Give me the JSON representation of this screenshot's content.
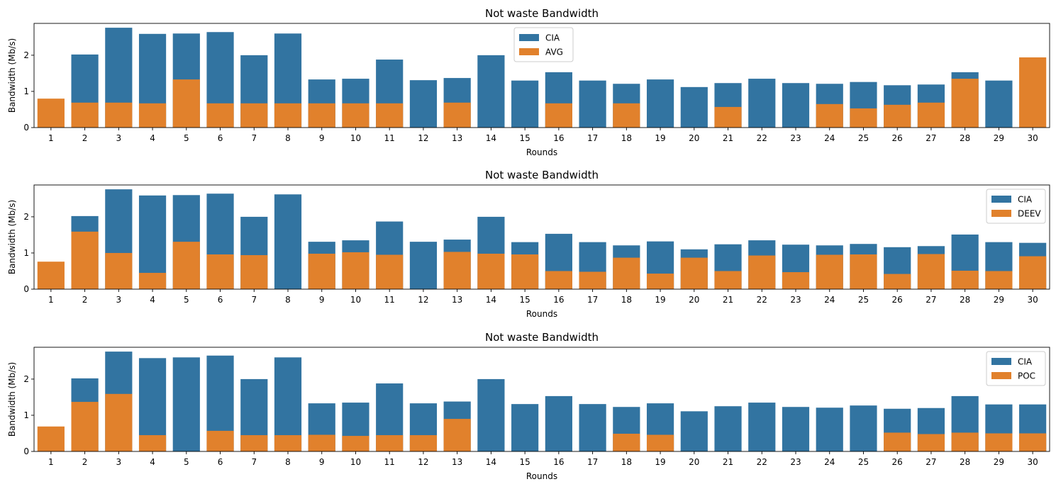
{
  "colors": {
    "cia": "#3274a1",
    "other": "#e1812c"
  },
  "chart_data": [
    {
      "type": "bar",
      "title": "Not waste Bandwidth",
      "xlabel": "Rounds",
      "ylabel": "Bandwidth (Mb/s)",
      "ylim": [
        0,
        2.88
      ],
      "yticks": [
        0,
        1,
        2
      ],
      "legend_position": "top-center",
      "categories": [
        "1",
        "2",
        "3",
        "4",
        "5",
        "6",
        "7",
        "8",
        "9",
        "10",
        "11",
        "12",
        "13",
        "14",
        "15",
        "16",
        "17",
        "18",
        "19",
        "20",
        "21",
        "22",
        "23",
        "24",
        "25",
        "26",
        "27",
        "28",
        "29",
        "30"
      ],
      "series": [
        {
          "name": "CIA",
          "values": [
            0,
            2.02,
            2.76,
            2.59,
            2.6,
            2.64,
            2.0,
            2.6,
            1.33,
            1.35,
            1.88,
            1.31,
            1.37,
            2.0,
            1.3,
            1.53,
            1.3,
            1.21,
            1.33,
            1.12,
            1.23,
            1.35,
            1.23,
            1.21,
            1.26,
            1.17,
            1.19,
            1.53,
            1.3,
            0
          ]
        },
        {
          "name": "AVG",
          "values": [
            0.8,
            0.69,
            0.69,
            0.67,
            1.33,
            0.67,
            0.67,
            0.67,
            0.67,
            0.67,
            0.67,
            0,
            0.69,
            0,
            0,
            0.67,
            0,
            0.67,
            0,
            0,
            0.57,
            0,
            0,
            0.65,
            0.53,
            0.63,
            0.69,
            1.35,
            0,
            1.94
          ]
        }
      ]
    },
    {
      "type": "bar",
      "title": "Not waste Bandwidth",
      "xlabel": "Rounds",
      "ylabel": "Bandwidth (Mb/s)",
      "ylim": [
        0,
        2.88
      ],
      "yticks": [
        0,
        1,
        2
      ],
      "legend_position": "top-right",
      "categories": [
        "1",
        "2",
        "3",
        "4",
        "5",
        "6",
        "7",
        "8",
        "9",
        "10",
        "11",
        "12",
        "13",
        "14",
        "15",
        "16",
        "17",
        "18",
        "19",
        "20",
        "21",
        "22",
        "23",
        "24",
        "25",
        "26",
        "27",
        "28",
        "29",
        "30"
      ],
      "series": [
        {
          "name": "CIA",
          "values": [
            0,
            2.02,
            2.76,
            2.59,
            2.6,
            2.64,
            2.0,
            2.62,
            1.31,
            1.35,
            1.87,
            1.31,
            1.37,
            2.0,
            1.3,
            1.53,
            1.3,
            1.21,
            1.32,
            1.1,
            1.24,
            1.35,
            1.23,
            1.21,
            1.25,
            1.16,
            1.19,
            1.51,
            1.3,
            1.28
          ]
        },
        {
          "name": "DEEV",
          "values": [
            0.76,
            1.59,
            1.0,
            0.45,
            1.31,
            0.96,
            0.94,
            0,
            0.98,
            1.02,
            0.95,
            0,
            1.03,
            0.98,
            0.96,
            0.5,
            0.48,
            0.87,
            0.43,
            0.87,
            0.5,
            0.93,
            0.47,
            0.95,
            0.96,
            0.42,
            0.97,
            0.51,
            0.5,
            0.91
          ]
        }
      ]
    },
    {
      "type": "bar",
      "title": "Not waste Bandwidth",
      "xlabel": "Rounds",
      "ylabel": "Bandwidth (Mb/s)",
      "ylim": [
        0,
        2.88
      ],
      "yticks": [
        0,
        1,
        2
      ],
      "legend_position": "top-right",
      "categories": [
        "1",
        "2",
        "3",
        "4",
        "5",
        "6",
        "7",
        "8",
        "9",
        "10",
        "11",
        "12",
        "13",
        "14",
        "15",
        "16",
        "17",
        "18",
        "19",
        "20",
        "21",
        "22",
        "23",
        "24",
        "25",
        "26",
        "27",
        "28",
        "29",
        "30"
      ],
      "series": [
        {
          "name": "CIA",
          "values": [
            0,
            2.02,
            2.76,
            2.58,
            2.6,
            2.65,
            2.0,
            2.6,
            1.33,
            1.35,
            1.88,
            1.33,
            1.38,
            2.0,
            1.31,
            1.53,
            1.31,
            1.23,
            1.33,
            1.11,
            1.25,
            1.35,
            1.23,
            1.21,
            1.27,
            1.18,
            1.2,
            1.53,
            1.3,
            1.3
          ]
        },
        {
          "name": "POC",
          "values": [
            0.69,
            1.37,
            1.59,
            0.45,
            0,
            0.57,
            0.45,
            0.45,
            0.46,
            0.43,
            0.45,
            0.45,
            0.9,
            0,
            0,
            0,
            0,
            0.49,
            0.46,
            0,
            0,
            0,
            0,
            0,
            0,
            0.52,
            0.48,
            0.52,
            0.5,
            0.5
          ]
        }
      ]
    }
  ]
}
